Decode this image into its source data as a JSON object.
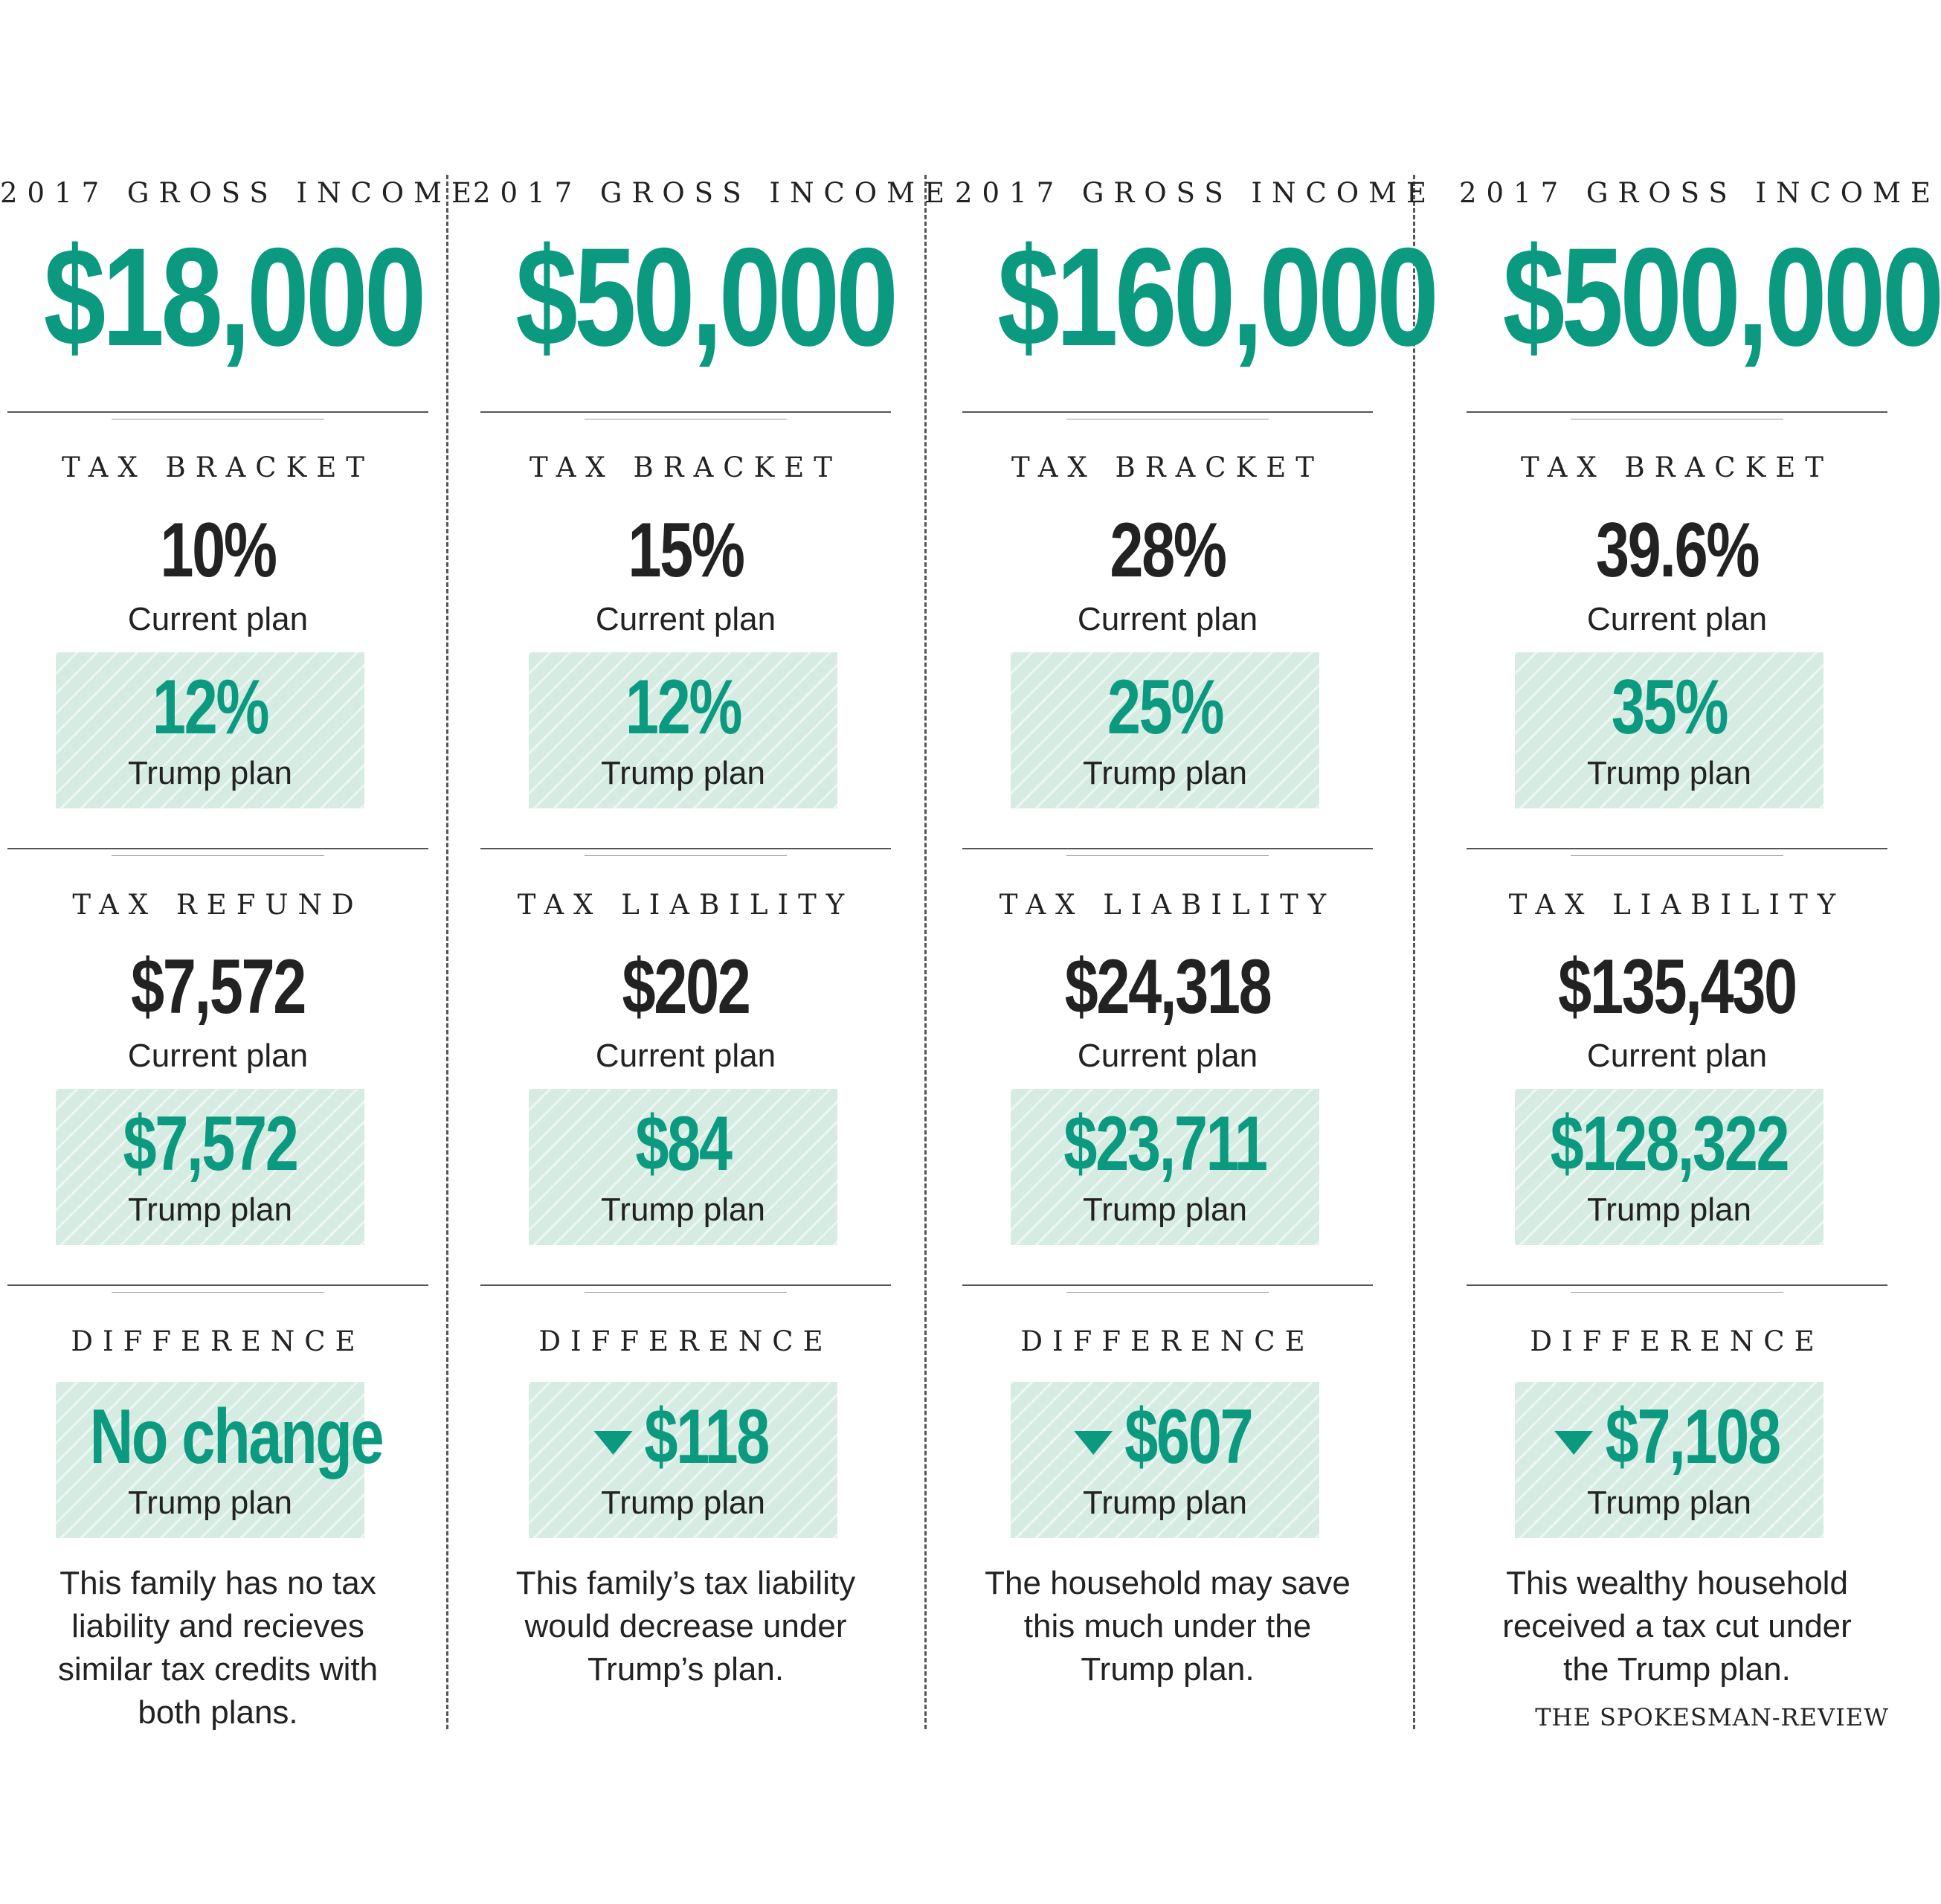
{
  "section_labels": {
    "gross_income": "2017 GROSS INCOME",
    "tax_bracket": "TAX BRACKET",
    "difference": "DIFFERENCE",
    "current_plan": "Current plan",
    "trump_plan": "Trump plan"
  },
  "columns": [
    {
      "income": "$18,000",
      "bracket_current": "10%",
      "bracket_trump": "12%",
      "amount_label": "TAX REFUND",
      "amount_current": "$7,572",
      "amount_trump": "$7,572",
      "difference": "No change",
      "difference_arrow": false,
      "note_lines": [
        "This family has no tax",
        "liability and recieves",
        "similar tax credits with",
        "both plans."
      ]
    },
    {
      "income": "$50,000",
      "bracket_current": "15%",
      "bracket_trump": "12%",
      "amount_label": "TAX LIABILITY",
      "amount_current": "$202",
      "amount_trump": "$84",
      "difference": "$118",
      "difference_arrow": true,
      "note_lines": [
        "This family’s tax liability",
        "would decrease under",
        "Trump’s plan."
      ]
    },
    {
      "income": "$160,000",
      "bracket_current": "28%",
      "bracket_trump": "25%",
      "amount_label": "TAX LIABILITY",
      "amount_current": "$24,318",
      "amount_trump": "$23,711",
      "difference": "$607",
      "difference_arrow": true,
      "note_lines": [
        "The household may save",
        "this much under the",
        "Trump plan."
      ]
    },
    {
      "income": "$500,000",
      "bracket_current": "39.6%",
      "bracket_trump": "35%",
      "amount_label": "TAX LIABILITY",
      "amount_current": "$135,430",
      "amount_trump": "$128,322",
      "difference": "$7,108",
      "difference_arrow": true,
      "note_lines": [
        "This wealthy household",
        "received a tax cut under",
        "the Trump plan."
      ]
    }
  ],
  "credit": "THE SPOKESMAN-REVIEW",
  "colors": {
    "accent": "#0b9a80",
    "box_fill": "#d6ece3",
    "text": "#222222"
  }
}
